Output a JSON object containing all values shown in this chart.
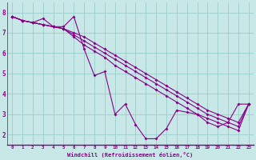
{
  "xlabel": "Windchill (Refroidissement éolien,°C)",
  "bg_color": "#c8e8e8",
  "line_color": "#880088",
  "grid_color": "#99cccc",
  "series1": [
    7.8,
    7.6,
    7.5,
    7.7,
    7.3,
    7.3,
    7.8,
    6.2,
    4.9,
    5.1,
    3.0,
    3.5,
    2.5,
    1.8,
    1.8,
    2.3,
    3.2,
    3.1,
    3.0,
    2.6,
    2.4,
    2.6,
    3.5,
    3.5
  ],
  "series2": [
    7.8,
    7.6,
    7.5,
    7.4,
    7.3,
    7.2,
    6.8,
    6.4,
    6.1,
    5.8,
    5.4,
    5.1,
    4.8,
    4.5,
    4.2,
    3.9,
    3.6,
    3.3,
    3.0,
    2.8,
    2.6,
    2.4,
    2.2,
    3.5
  ],
  "series3": [
    7.8,
    7.6,
    7.5,
    7.4,
    7.3,
    7.2,
    6.9,
    6.6,
    6.3,
    6.0,
    5.7,
    5.4,
    5.1,
    4.8,
    4.5,
    4.2,
    3.9,
    3.6,
    3.3,
    3.0,
    2.8,
    2.6,
    2.4,
    3.5
  ],
  "series4": [
    7.8,
    7.6,
    7.5,
    7.4,
    7.3,
    7.2,
    7.0,
    6.8,
    6.5,
    6.2,
    5.9,
    5.6,
    5.3,
    5.0,
    4.7,
    4.4,
    4.1,
    3.8,
    3.5,
    3.2,
    3.0,
    2.8,
    2.6,
    3.5
  ],
  "xlim": [
    -0.5,
    23.5
  ],
  "ylim": [
    1.5,
    8.5
  ],
  "yticks": [
    2,
    3,
    4,
    5,
    6,
    7,
    8
  ],
  "xticks": [
    0,
    1,
    2,
    3,
    4,
    5,
    6,
    7,
    8,
    9,
    10,
    11,
    12,
    13,
    14,
    15,
    16,
    17,
    18,
    19,
    20,
    21,
    22,
    23
  ],
  "marker": "D",
  "markersize": 2.0,
  "linewidth": 0.8
}
